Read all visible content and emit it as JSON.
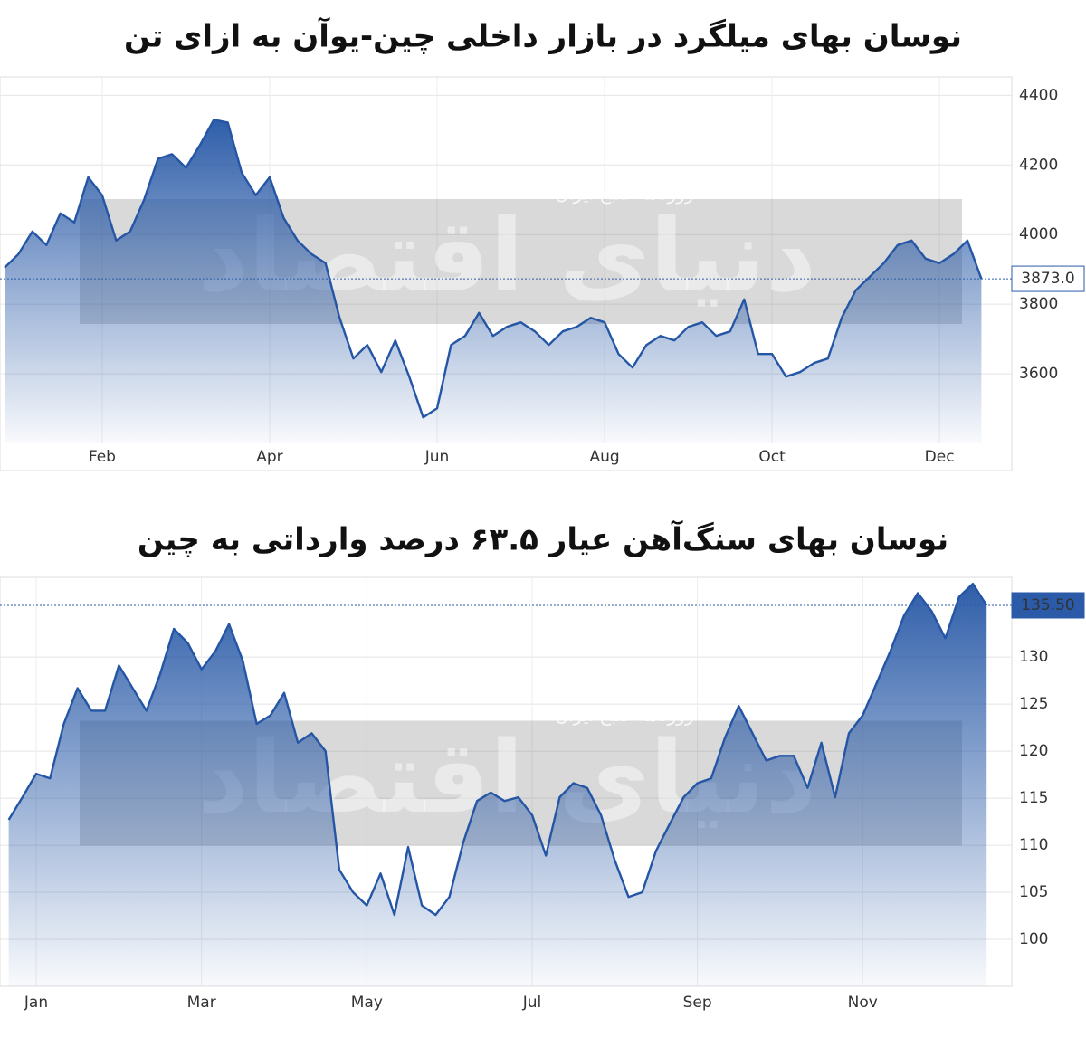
{
  "chart_data": [
    {
      "type": "area",
      "title": "نوسان بهای میلگرد در بازار داخلی چین-یوآن به ازای تن",
      "watermark": "دنیای اقتصاد",
      "watermark_sub": "روزنامه صبح ایران",
      "categories": [
        null,
        null,
        null,
        null,
        null,
        null,
        null,
        "Feb",
        null,
        null,
        null,
        null,
        null,
        null,
        null,
        null,
        null,
        null,
        null,
        "Apr",
        null,
        null,
        null,
        null,
        null,
        null,
        null,
        null,
        null,
        null,
        null,
        "Jun",
        null,
        null,
        null,
        null,
        null,
        null,
        null,
        null,
        null,
        null,
        null,
        "Aug",
        null,
        null,
        null,
        null,
        null,
        null,
        null,
        null,
        null,
        null,
        null,
        "Oct",
        null,
        null,
        null,
        null,
        null,
        null,
        null,
        null,
        null,
        null,
        null,
        "Dec",
        null,
        null,
        null
      ],
      "series": [
        {
          "color": "#2456a5",
          "values": [
            3905,
            3944,
            4009,
            3970,
            4061,
            4035,
            4165,
            4113,
            3983,
            4009,
            4100,
            4218,
            4231,
            4192,
            4257,
            4330,
            4322,
            4178,
            4113,
            4165,
            4048,
            3983,
            3944,
            3918,
            3762,
            3644,
            3683,
            3605,
            3696,
            3592,
            3475,
            3501,
            3683,
            3709,
            3775,
            3709,
            3735,
            3748,
            3722,
            3683,
            3722,
            3735,
            3761,
            3748,
            3657,
            3618,
            3683,
            3709,
            3696,
            3735,
            3748,
            3709,
            3722,
            3814,
            3657,
            3657,
            3592,
            3605,
            3631,
            3644,
            3762,
            3840,
            3879,
            3918,
            3970,
            3983,
            3931,
            3918,
            3944,
            3983,
            3873
          ]
        }
      ],
      "marker": {
        "value": 3873,
        "label": "3873.0"
      },
      "ylim": [
        3400,
        4440
      ],
      "yticks": [
        3600,
        3800,
        4000,
        4200,
        4400
      ],
      "grid": true
    },
    {
      "type": "area",
      "title": "نوسان بهای سنگ‌آهن عیار ۶۳.۵ درصد وارداتی به چین",
      "watermark": "دنیای اقتصاد",
      "watermark_sub": "روزنامه صبح ایران",
      "categories": [
        null,
        null,
        "Jan",
        null,
        null,
        null,
        null,
        null,
        null,
        null,
        null,
        null,
        null,
        null,
        "Mar",
        null,
        null,
        null,
        null,
        null,
        null,
        null,
        null,
        null,
        null,
        null,
        "May",
        null,
        null,
        null,
        null,
        null,
        null,
        null,
        null,
        null,
        null,
        null,
        "Jul",
        null,
        null,
        null,
        null,
        null,
        null,
        null,
        null,
        null,
        null,
        null,
        "Sep",
        null,
        null,
        null,
        null,
        null,
        null,
        null,
        null,
        null,
        null,
        null,
        "Nov",
        null,
        null,
        null,
        null,
        null,
        null,
        null,
        null,
        null
      ],
      "series": [
        {
          "color": "#2456a5",
          "values": [
            112.7,
            115.1,
            117.6,
            117.1,
            122.9,
            126.7,
            124.3,
            124.3,
            129.1,
            126.7,
            124.3,
            128.2,
            133.0,
            131.5,
            128.7,
            130.6,
            133.5,
            129.6,
            122.9,
            123.8,
            126.2,
            120.9,
            121.9,
            120.0,
            107.4,
            105.0,
            103.6,
            107.0,
            102.6,
            109.8,
            103.6,
            102.6,
            104.5,
            110.3,
            114.7,
            115.6,
            114.7,
            115.1,
            113.2,
            108.9,
            115.1,
            116.6,
            116.1,
            113.2,
            108.4,
            104.5,
            105.0,
            109.4,
            112.3,
            115.1,
            116.6,
            117.1,
            121.4,
            124.8,
            121.9,
            119.0,
            119.5,
            119.5,
            116.1,
            120.9,
            115.1,
            121.9,
            123.8,
            127.2,
            130.6,
            134.4,
            136.8,
            134.9,
            132.0,
            136.4,
            137.8,
            135.5
          ]
        }
      ],
      "marker": {
        "value": 135.5,
        "label": "135.50"
      },
      "ylim": [
        95,
        138
      ],
      "yticks": [
        100,
        105,
        110,
        115,
        120,
        125,
        130
      ],
      "grid": true
    }
  ]
}
